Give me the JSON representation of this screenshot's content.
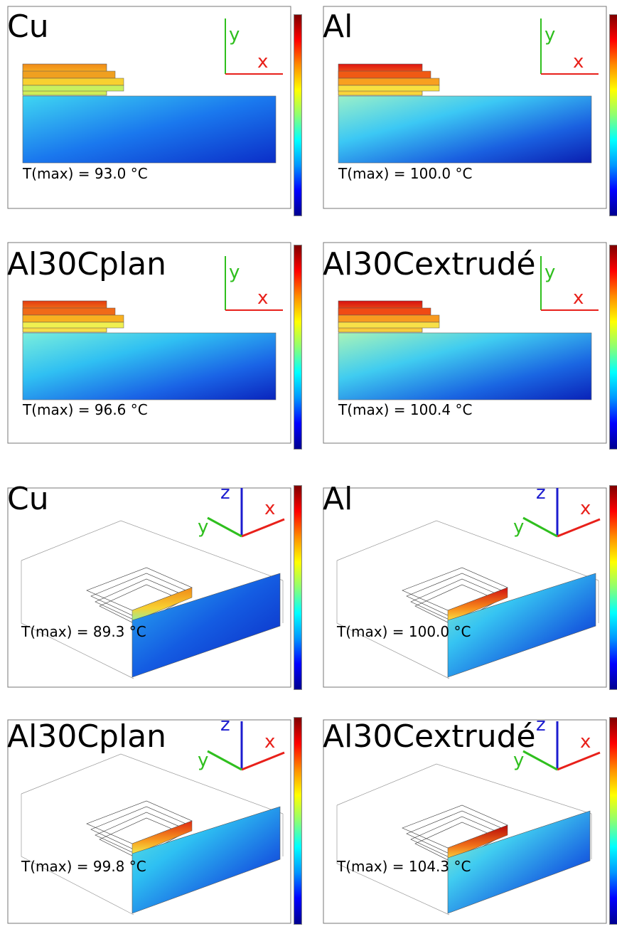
{
  "panels": [
    {
      "material": "Cu",
      "tmax": "T(max) = 93.0 °C",
      "view": "2d",
      "axes": {
        "x": "x",
        "y": "y"
      }
    },
    {
      "material": "Al",
      "tmax": "T(max) = 100.0 °C",
      "view": "2d",
      "axes": {
        "x": "x",
        "y": "y"
      }
    },
    {
      "material": "Al30Cplan",
      "tmax": "T(max) = 96.6 °C",
      "view": "2d",
      "axes": {
        "x": "x",
        "y": "y"
      }
    },
    {
      "material": "Al30Cextrudé",
      "tmax": "T(max) = 100.4 °C",
      "view": "2d",
      "axes": {
        "x": "x",
        "y": "y"
      }
    },
    {
      "material": "Cu",
      "tmax": "T(max) = 89.3 °C",
      "view": "3d",
      "axes": {
        "x": "x",
        "y": "y",
        "z": "z"
      }
    },
    {
      "material": "Al",
      "tmax": "T(max) = 100.0 °C",
      "view": "3d",
      "axes": {
        "x": "x",
        "y": "y",
        "z": "z"
      }
    },
    {
      "material": "Al30Cplan",
      "tmax": "T(max) = 99.8 °C",
      "view": "3d",
      "axes": {
        "x": "x",
        "y": "y",
        "z": "z"
      }
    },
    {
      "material": "Al30Cextrudé",
      "tmax": "T(max) = 104.3 °C",
      "view": "3d",
      "axes": {
        "x": "x",
        "y": "y",
        "z": "z"
      }
    }
  ],
  "colors": {
    "hot": "#e01a10",
    "warm": "#f5a020",
    "cool": "#40d0f0",
    "cold": "#0a20c0",
    "axis_x": "#e8201a",
    "axis_y": "#2fbf1e",
    "axis_z": "#1c1ccf"
  }
}
